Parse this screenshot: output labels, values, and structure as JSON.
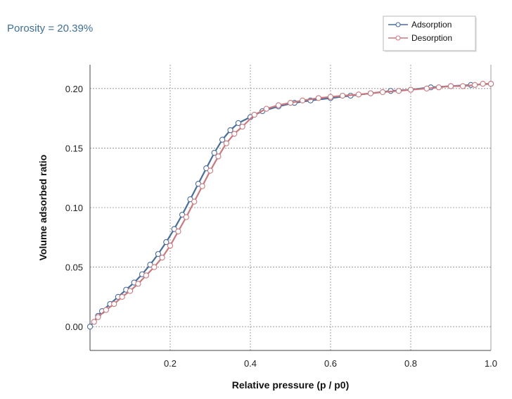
{
  "annotation": "Porosity = 20.39%",
  "chart_data": {
    "type": "line",
    "xlabel": "Relative pressure (p / p0)",
    "ylabel": "Volume adsorbed ratio",
    "xlim": [
      0.0,
      1.0
    ],
    "ylim": [
      -0.02,
      0.22
    ],
    "xticks": [
      0.2,
      0.4,
      0.6,
      0.8,
      1.0
    ],
    "xtick_labels": [
      "0.2",
      "0.4",
      "0.6",
      "0.8",
      "1.0"
    ],
    "yticks": [
      0.0,
      0.05,
      0.1,
      0.15,
      0.2
    ],
    "ytick_labels": [
      "0.00",
      "0.05",
      "0.10",
      "0.15",
      "0.20"
    ],
    "grid": true,
    "legend_position": "top-right",
    "series": [
      {
        "name": "Adsorption",
        "color": "#4a6d9b",
        "x": [
          0.0,
          0.02,
          0.03,
          0.05,
          0.07,
          0.09,
          0.11,
          0.13,
          0.15,
          0.17,
          0.19,
          0.21,
          0.23,
          0.25,
          0.27,
          0.29,
          0.31,
          0.33,
          0.35,
          0.37,
          0.4,
          0.43,
          0.47,
          0.51,
          0.55,
          0.6,
          0.65,
          0.7,
          0.75,
          0.8,
          0.85,
          0.9,
          0.95,
          1.0
        ],
        "y": [
          0.0,
          0.009,
          0.013,
          0.019,
          0.025,
          0.031,
          0.037,
          0.044,
          0.052,
          0.061,
          0.071,
          0.082,
          0.094,
          0.107,
          0.12,
          0.133,
          0.146,
          0.157,
          0.165,
          0.171,
          0.176,
          0.181,
          0.185,
          0.188,
          0.19,
          0.192,
          0.194,
          0.196,
          0.198,
          0.199,
          0.201,
          0.202,
          0.203,
          0.204
        ]
      },
      {
        "name": "Desorption",
        "color": "#c97a80",
        "x": [
          1.0,
          0.98,
          0.96,
          0.93,
          0.9,
          0.87,
          0.84,
          0.8,
          0.77,
          0.73,
          0.7,
          0.67,
          0.63,
          0.6,
          0.57,
          0.53,
          0.5,
          0.47,
          0.44,
          0.41,
          0.38,
          0.36,
          0.34,
          0.32,
          0.3,
          0.28,
          0.26,
          0.24,
          0.22,
          0.2,
          0.18,
          0.16,
          0.14,
          0.12,
          0.1,
          0.08,
          0.06,
          0.04,
          0.02,
          0.01
        ],
        "y": [
          0.204,
          0.204,
          0.203,
          0.202,
          0.202,
          0.201,
          0.2,
          0.199,
          0.198,
          0.197,
          0.196,
          0.195,
          0.194,
          0.193,
          0.192,
          0.19,
          0.188,
          0.186,
          0.183,
          0.178,
          0.168,
          0.162,
          0.154,
          0.143,
          0.131,
          0.118,
          0.105,
          0.092,
          0.08,
          0.068,
          0.058,
          0.05,
          0.043,
          0.036,
          0.03,
          0.025,
          0.019,
          0.014,
          0.008,
          0.004
        ]
      }
    ]
  }
}
